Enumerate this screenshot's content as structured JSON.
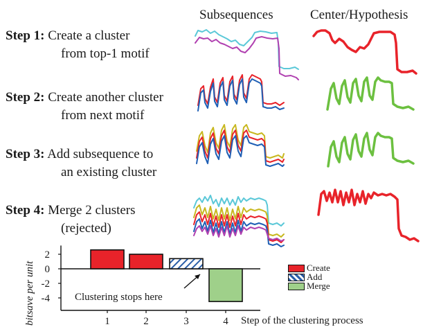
{
  "headers": {
    "subsequences": "Subsequences",
    "center": "Center/Hypothesis"
  },
  "steps": [
    {
      "label": "Step 1:",
      "text1": "Create a cluster",
      "text2": "from top-1 motif"
    },
    {
      "label": "Step 2:",
      "text1": "Create another cluster",
      "text2": "from next motif"
    },
    {
      "label": "Step 3:",
      "text1": "Add  subsequence to",
      "text2": "an existing cluster"
    },
    {
      "label": "Step 4:",
      "text1": "Merge 2 clusters",
      "text2": "(rejected)"
    }
  ],
  "chart_data": {
    "type": "bar",
    "categories": [
      "1",
      "2",
      "3",
      "4"
    ],
    "values": [
      2.6,
      2.0,
      1.4,
      -4.5
    ],
    "series_type": [
      "Create",
      "Create",
      "Add",
      "Merge"
    ],
    "ylabel": "bitsave per unit",
    "xlabel": "Step of the clustering process",
    "yticks": [
      "2",
      "0",
      "-2",
      "-4"
    ],
    "ylim": [
      -5.5,
      3.2
    ],
    "legend": [
      "Create",
      "Add",
      "Merge"
    ],
    "legend_position": "right",
    "annotation": "Clustering stops here",
    "colors": {
      "Create": "#e8232a",
      "Add": "#2a5ea8",
      "Merge": "#9fd08a"
    }
  },
  "colors": {
    "cyan": "#5bc8d8",
    "magenta": "#b040b0",
    "red": "#e8232a",
    "blue": "#1f5fb5",
    "olive": "#c8b820",
    "green": "#6cc040"
  }
}
